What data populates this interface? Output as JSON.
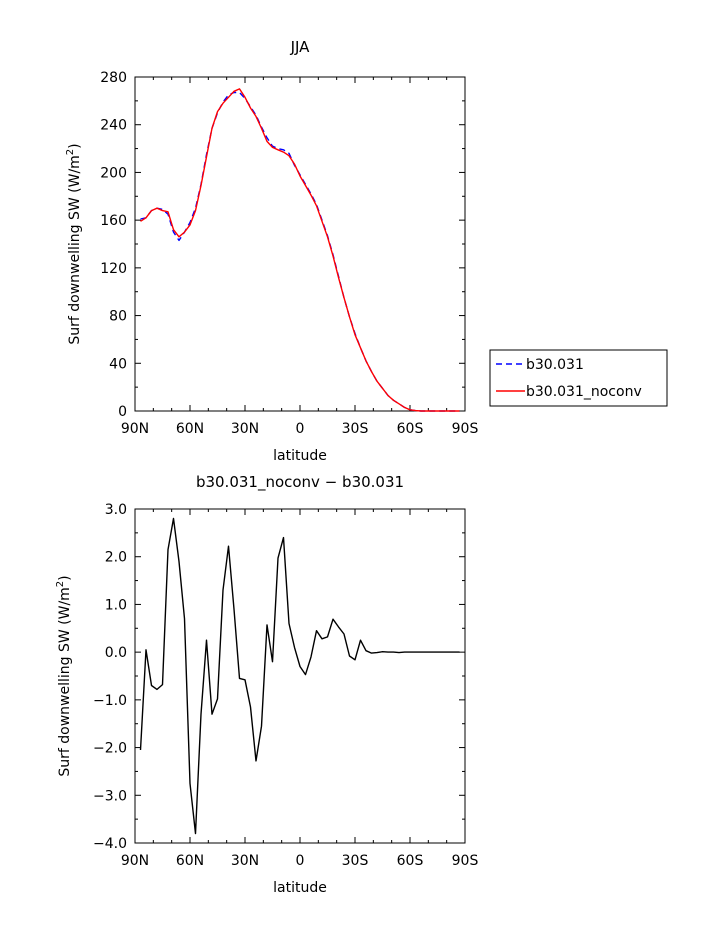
{
  "chart_data": [
    {
      "type": "line",
      "title": "JJA",
      "xlabel": "latitude",
      "ylabel": "Surf downwelling SW (W/m²)",
      "ylabel_main": "Surf downwelling SW (W/m",
      "ylabel_sup": "2",
      "ylabel_close": ")",
      "xlim": [
        90,
        -90
      ],
      "ylim": [
        0,
        280
      ],
      "xticks": [
        90,
        60,
        30,
        0,
        -30,
        -60,
        -90
      ],
      "xtick_labels": [
        "90N",
        "60N",
        "30N",
        "0",
        "30S",
        "60S",
        "90S"
      ],
      "yticks": [
        0,
        40,
        80,
        120,
        160,
        200,
        240,
        280
      ],
      "ytick_labels": [
        "0",
        "40",
        "80",
        "120",
        "160",
        "200",
        "240",
        "280"
      ],
      "legend": "right",
      "grid": false,
      "series": [
        {
          "name": "b30.031",
          "color": "#0000ff",
          "dash": "dashed",
          "x": [
            87,
            84,
            81,
            78,
            75,
            72,
            69,
            66,
            63,
            60,
            57,
            54,
            51,
            48,
            45,
            42,
            39,
            36,
            33,
            30,
            27,
            24,
            21,
            18,
            15,
            12,
            9,
            6,
            3,
            0,
            -3,
            -6,
            -9,
            -12,
            -15,
            -18,
            -21,
            -24,
            -27,
            -30,
            -33,
            -36,
            -39,
            -42,
            -45,
            -48,
            -51,
            -54,
            -57,
            -60,
            -63,
            -66,
            -69,
            -72,
            -75,
            -78,
            -81,
            -84,
            -87
          ],
          "y": [
            161,
            162,
            168,
            170,
            169,
            165,
            150,
            143,
            150,
            158,
            170,
            190,
            215,
            237,
            250,
            259,
            265,
            267,
            267,
            262,
            255,
            248,
            238,
            229,
            222,
            220,
            219,
            216,
            206,
            198,
            190,
            182,
            173,
            160,
            147,
            131,
            113,
            95,
            79,
            65,
            53,
            42,
            33,
            25,
            19,
            13,
            9,
            6,
            3,
            1,
            0.3,
            0,
            0,
            0,
            0,
            0,
            0,
            0,
            0
          ]
        },
        {
          "name": "b30.031_noconv",
          "color": "#ff0000",
          "dash": "solid",
          "x": [
            87,
            84,
            81,
            78,
            75,
            72,
            69,
            66,
            63,
            60,
            57,
            54,
            51,
            48,
            45,
            42,
            39,
            36,
            33,
            30,
            27,
            24,
            21,
            18,
            15,
            12,
            9,
            6,
            3,
            0,
            -3,
            -6,
            -9,
            -12,
            -15,
            -18,
            -21,
            -24,
            -27,
            -30,
            -33,
            -36,
            -39,
            -42,
            -45,
            -48,
            -51,
            -54,
            -57,
            -60,
            -63,
            -66,
            -69,
            -72,
            -75,
            -78,
            -81,
            -84,
            -87
          ],
          "y": [
            159,
            162,
            168,
            170,
            168,
            167,
            152,
            146,
            150,
            156,
            168,
            189,
            213,
            237,
            251,
            258,
            263,
            268,
            270,
            263,
            254,
            247,
            237,
            226,
            221,
            219,
            217,
            214,
            207,
            197,
            189,
            181,
            172,
            159,
            146,
            130,
            112,
            95,
            79,
            64,
            53,
            42,
            33,
            25,
            19,
            13,
            9,
            6,
            3,
            1,
            0.3,
            0,
            0,
            0,
            0,
            0,
            0,
            0,
            0
          ]
        }
      ]
    },
    {
      "type": "line",
      "title": "b30.031_noconv − b30.031",
      "xlabel": "latitude",
      "ylabel": "Surf downwelling SW (W/m²)",
      "ylabel_main": "Surf downwelling SW (W/m",
      "ylabel_sup": "2",
      "ylabel_close": ")",
      "xlim": [
        90,
        -90
      ],
      "ylim": [
        -4,
        3
      ],
      "xticks": [
        90,
        60,
        30,
        0,
        -30,
        -60,
        -90
      ],
      "xtick_labels": [
        "90N",
        "60N",
        "30N",
        "0",
        "30S",
        "60S",
        "90S"
      ],
      "yticks": [
        -4,
        -3,
        -2,
        -1,
        0,
        1,
        2,
        3
      ],
      "ytick_labels": [
        "−4.0",
        "−3.0",
        "−2.0",
        "−1.0",
        "0.0",
        "1.0",
        "2.0",
        "3.0"
      ],
      "grid": false,
      "series": [
        {
          "color": "#000000",
          "dash": "solid",
          "x": [
            87,
            84,
            81,
            78,
            75,
            72,
            69,
            66,
            63,
            60,
            57,
            54,
            51,
            48,
            45,
            42,
            39,
            36,
            33,
            30,
            27,
            24,
            21,
            18,
            15,
            12,
            9,
            6,
            3,
            0,
            -3,
            -6,
            -9,
            -12,
            -15,
            -18,
            -21,
            -24,
            -27,
            -30,
            -33,
            -36,
            -39,
            -42,
            -45,
            -48,
            -51,
            -54,
            -57,
            -60,
            -63,
            -66,
            -69,
            -72,
            -75,
            -78,
            -81,
            -84,
            -87
          ],
          "y": [
            -2.05,
            0.05,
            -0.7,
            -0.78,
            -0.68,
            2.15,
            2.8,
            1.9,
            0.7,
            -2.75,
            -3.8,
            -1.3,
            0.25,
            -1.3,
            -0.98,
            1.3,
            2.22,
            0.9,
            -0.55,
            -0.58,
            -1.15,
            -2.28,
            -1.55,
            0.57,
            -0.2,
            1.97,
            2.4,
            0.6,
            0.1,
            -0.3,
            -0.47,
            -0.1,
            0.45,
            0.28,
            0.32,
            0.69,
            0.53,
            0.38,
            -0.08,
            -0.16,
            0.25,
            0.03,
            -0.02,
            -0.01,
            0.01,
            0.0,
            0.0,
            -0.01,
            0.0,
            0.0,
            0.0,
            0.0,
            0.0,
            0.0,
            0.0,
            0.0,
            0.0,
            0.0,
            0.0
          ]
        }
      ]
    }
  ]
}
